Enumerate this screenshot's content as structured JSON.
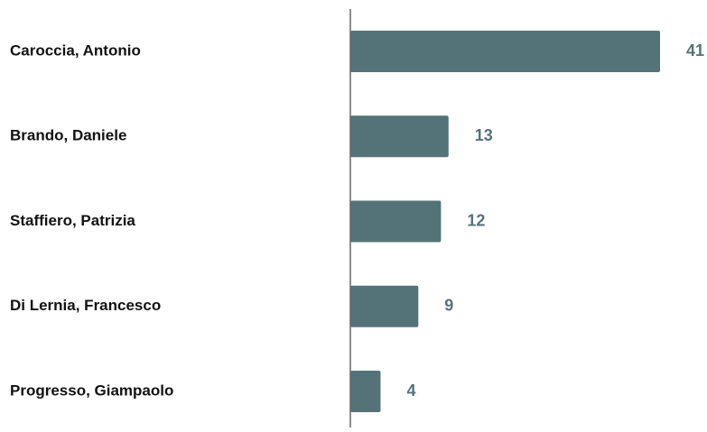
{
  "chart_data": {
    "type": "bar",
    "orientation": "horizontal",
    "categories": [
      "Caroccia, Antonio",
      "Brando, Daniele",
      "Staffiero, Patrizia",
      "Di Lernia, Francesco",
      "Progresso, Giampaolo"
    ],
    "values": [
      41,
      13,
      12,
      9,
      4
    ],
    "value_labels": [
      "41",
      "13",
      "12",
      "9",
      "4"
    ],
    "title": "",
    "xlabel": "",
    "ylabel": "",
    "xlim": [
      0,
      41
    ],
    "grid": false,
    "legend": "none",
    "colors": {
      "bar": "#547378",
      "value_label": "#547378",
      "category_label": "#111111",
      "axis": "#666666"
    }
  }
}
